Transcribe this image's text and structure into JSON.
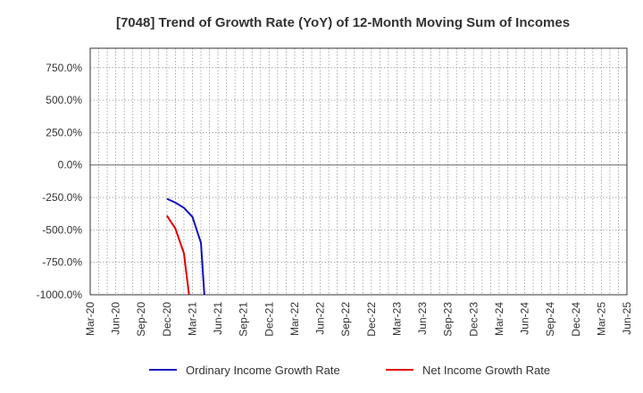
{
  "chart_data": {
    "type": "line",
    "title": "[7048]  Trend of Growth Rate (YoY) of 12-Month Moving Sum of Incomes",
    "xlabel": "",
    "ylabel": "",
    "ylim": [
      -1000,
      900
    ],
    "y_ticks": [
      750,
      500,
      250,
      0,
      -250,
      -500,
      -750,
      -1000
    ],
    "y_tick_labels": [
      "750.0%",
      "500.0%",
      "250.0%",
      "0.0%",
      "-250.0%",
      "-500.0%",
      "-750.0%",
      "-1000.0%"
    ],
    "x_tick_labels": [
      "Mar-20",
      "Jun-20",
      "Sep-20",
      "Dec-20",
      "Mar-21",
      "Jun-21",
      "Sep-21",
      "Dec-21",
      "Mar-22",
      "Jun-22",
      "Sep-22",
      "Dec-22",
      "Mar-23",
      "Jun-23",
      "Sep-23",
      "Dec-23",
      "Mar-24",
      "Jun-24",
      "Sep-24",
      "Dec-24",
      "Mar-25",
      "Jun-25"
    ],
    "x_tick_months": [
      0,
      3,
      6,
      9,
      12,
      15,
      18,
      21,
      24,
      27,
      30,
      33,
      36,
      39,
      42,
      45,
      48,
      51,
      54,
      57,
      60,
      63
    ],
    "grid": true,
    "legend_position": "bottom",
    "series": [
      {
        "name": "Ordinary Income Growth Rate",
        "color": "#1010c0",
        "x_months": [
          9,
          10,
          11,
          12,
          13,
          13.4
        ],
        "values": [
          -260,
          -290,
          -330,
          -400,
          -600,
          -1000
        ]
      },
      {
        "name": "Net Income Growth Rate",
        "color": "#e00000",
        "x_months": [
          9,
          10,
          11,
          11.6
        ],
        "values": [
          -390,
          -490,
          -680,
          -1000
        ]
      }
    ]
  }
}
